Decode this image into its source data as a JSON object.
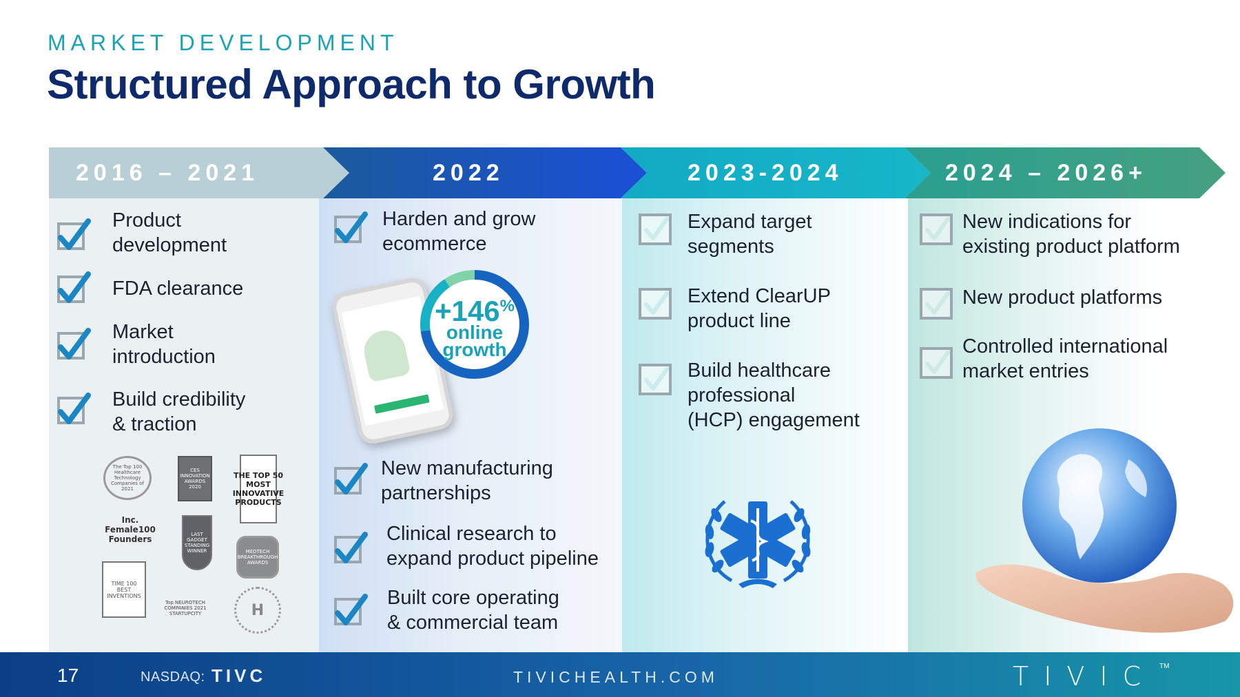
{
  "header": {
    "kicker": "MARKET DEVELOPMENT",
    "title": "Structured Approach to Growth"
  },
  "phases": [
    {
      "label": "2016 – 2021",
      "color": "#b8cfd6",
      "items": [
        [
          "Product",
          "development"
        ],
        [
          "FDA clearance"
        ],
        [
          "Market",
          "introduction"
        ],
        [
          "Build credibility",
          "& traction"
        ]
      ]
    },
    {
      "label": "2022",
      "color": "#1b4fc9",
      "items": [
        [
          "Harden and grow",
          "ecommerce"
        ],
        [
          "New manufacturing",
          "partnerships"
        ],
        [
          "Clinical research to",
          "expand product pipeline"
        ],
        [
          "Built core operating",
          "& commercial team"
        ]
      ]
    },
    {
      "label": "2023-2024",
      "color": "#15b3c8",
      "items": [
        [
          "Expand target",
          "segments"
        ],
        [
          "Extend ClearUP",
          "product line"
        ],
        [
          "Build healthcare",
          "professional",
          "(HCP) engagement"
        ]
      ]
    },
    {
      "label": "2024 – 2026+",
      "color": "#3c9a87",
      "items": [
        [
          "New indications for",
          "existing product platform"
        ],
        [
          "New product platforms"
        ],
        [
          "Controlled international",
          "market entries"
        ]
      ]
    }
  ],
  "growth": {
    "value": "+146",
    "unit": "%",
    "line1": "online",
    "line2": "growth"
  },
  "awards": [
    {
      "text": "The Top 100 Healthcare Technology Companies of 2021",
      "icon": "laurel-badge"
    },
    {
      "text": "CES INNOVATION AWARDS 2020",
      "icon": "ces-badge"
    },
    {
      "text": "THE TOP 50 MOST INNOVATIVE PRODUCTS",
      "icon": "top50-badge"
    },
    {
      "text": "Inc. Female100 Founders",
      "icon": "inc-badge"
    },
    {
      "text": "LAST GADGET STANDING WINNER",
      "icon": "gadget-badge"
    },
    {
      "text": "MEDTECH BREAKTHROUGH AWARDS",
      "icon": "medtech-badge"
    },
    {
      "text": "TIME 100 BEST INVENTIONS",
      "icon": "time-badge"
    },
    {
      "text": "Top NEUROTECH COMPANIES 2021 STARTUPCITY",
      "icon": "star-trophy"
    },
    {
      "text": "H",
      "icon": "h-seal"
    }
  ],
  "footer": {
    "page": "17",
    "nasdaq": "NASDAQ:",
    "ticker": "TIVC",
    "website": "TIVICHEALTH.COM",
    "logo": "TIVIC",
    "tm": "TM"
  }
}
